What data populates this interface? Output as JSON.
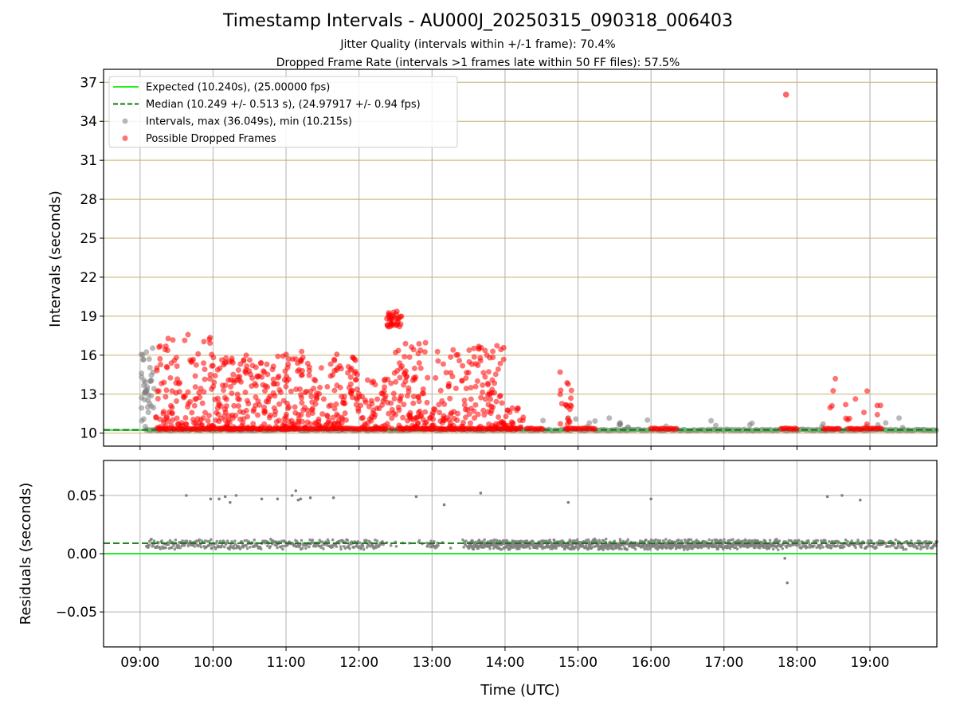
{
  "figure": {
    "title": "Timestamp Intervals - AU000J_20250315_090318_006403",
    "subtitle_jitter": "Jitter Quality (intervals within +/-1 frame): 70.4%",
    "subtitle_dropped": "Dropped Frame Rate (intervals >1 frames late within 50 FF files): 57.5%"
  },
  "colors": {
    "expected": "#22ee22",
    "median": "#117711",
    "intervals": "#808080",
    "dropped": "#ff0000",
    "hgrid_top": "#c8b070",
    "grid": "#b0b0b0"
  },
  "chart_data": [
    {
      "type": "scatter",
      "ylabel": "Intervals (seconds)",
      "ylim": [
        9,
        38
      ],
      "yticks": [
        10,
        13,
        16,
        19,
        22,
        25,
        28,
        31,
        34,
        37
      ],
      "xlim": [
        "08:30",
        "19:55"
      ],
      "xticks": [
        "09:00",
        "10:00",
        "11:00",
        "12:00",
        "13:00",
        "14:00",
        "15:00",
        "16:00",
        "17:00",
        "18:00",
        "19:00"
      ],
      "grid": "on",
      "legend_position": "top-left",
      "legend": [
        "Expected (10.240s), (25.00000 fps)",
        "Median (10.249 +/- 0.513 s), (24.97917 +/- 0.94 fps)",
        "Intervals, max (36.049s), min (10.215s)",
        "Possible Dropped Frames"
      ],
      "expected_interval": 10.24,
      "median_interval": 10.249,
      "interval_max": 36.049,
      "interval_min": 10.215,
      "outlier": {
        "time": "17:51",
        "value": 36.05
      },
      "dropped_clusters": [
        {
          "from": "09:13",
          "to": "10:00",
          "low": 10.3,
          "high": 17.6,
          "count": 120
        },
        {
          "from": "10:00",
          "to": "11:00",
          "low": 10.3,
          "high": 16.0,
          "count": 180
        },
        {
          "from": "11:00",
          "to": "12:00",
          "low": 10.3,
          "high": 16.3,
          "count": 170
        },
        {
          "from": "12:00",
          "to": "12:28",
          "low": 10.3,
          "high": 14.3,
          "count": 55
        },
        {
          "from": "12:22",
          "to": "12:35",
          "low": 18.2,
          "high": 19.4,
          "count": 35
        },
        {
          "from": "12:28",
          "to": "13:00",
          "low": 10.3,
          "high": 17.0,
          "count": 95
        },
        {
          "from": "13:00",
          "to": "14:00",
          "low": 10.3,
          "high": 16.8,
          "count": 150
        },
        {
          "from": "14:00",
          "to": "14:15",
          "low": 10.3,
          "high": 12.0,
          "count": 25
        },
        {
          "from": "14:45",
          "to": "14:55",
          "low": 10.3,
          "high": 14.7,
          "count": 20
        },
        {
          "from": "18:25",
          "to": "19:10",
          "low": 10.3,
          "high": 14.3,
          "count": 15
        }
      ],
      "dropped_baseline_segments": [
        [
          "09:15",
          "12:22"
        ],
        [
          "12:32",
          "14:10"
        ],
        [
          "14:18",
          "14:32"
        ],
        [
          "14:50",
          "15:15"
        ],
        [
          "16:00",
          "16:22"
        ],
        [
          "17:47",
          "18:00"
        ],
        [
          "18:22",
          "18:35"
        ],
        [
          "18:42",
          "19:10"
        ]
      ],
      "interval_clusters": [
        {
          "from": "09:01",
          "to": "09:12",
          "low": 10.3,
          "high": 17.1,
          "count": 40
        },
        {
          "from": "14:30",
          "to": "19:55",
          "low": 10.2,
          "high": 11.2,
          "count": 30
        }
      ]
    },
    {
      "type": "scatter",
      "ylabel": "Residuals (seconds)",
      "xlabel": "Time (UTC)",
      "ylim": [
        -0.08,
        0.08
      ],
      "yticks": [
        0.05,
        0.0,
        -0.05
      ],
      "ytick_labels": [
        "0.05",
        "0.00",
        "−0.05"
      ],
      "expected": 0.0,
      "median": 0.009,
      "residual_band": {
        "from": "09:05",
        "to": "19:55",
        "center": 0.008,
        "spread": 0.004
      },
      "gaps": [
        [
          "12:20",
          "12:55"
        ],
        [
          "13:05",
          "13:25"
        ]
      ],
      "high_points": [
        {
          "time": "09:38",
          "value": 0.05
        },
        {
          "time": "09:58",
          "value": 0.047
        },
        {
          "time": "10:05",
          "value": 0.047
        },
        {
          "time": "10:10",
          "value": 0.049
        },
        {
          "time": "10:14",
          "value": 0.044
        },
        {
          "time": "10:19",
          "value": 0.05
        },
        {
          "time": "10:40",
          "value": 0.047
        },
        {
          "time": "10:53",
          "value": 0.047
        },
        {
          "time": "11:05",
          "value": 0.05
        },
        {
          "time": "11:08",
          "value": 0.054
        },
        {
          "time": "11:10",
          "value": 0.046
        },
        {
          "time": "11:12",
          "value": 0.047
        },
        {
          "time": "11:20",
          "value": 0.048
        },
        {
          "time": "11:39",
          "value": 0.048
        },
        {
          "time": "12:47",
          "value": 0.049
        },
        {
          "time": "13:10",
          "value": 0.042
        },
        {
          "time": "13:40",
          "value": 0.052
        },
        {
          "time": "14:52",
          "value": 0.044
        },
        {
          "time": "16:00",
          "value": 0.047
        },
        {
          "time": "18:25",
          "value": 0.049
        },
        {
          "time": "18:37",
          "value": 0.05
        },
        {
          "time": "18:52",
          "value": 0.046
        }
      ],
      "low_points": [
        {
          "time": "17:50",
          "value": -0.004
        },
        {
          "time": "17:52",
          "value": -0.025
        }
      ]
    }
  ]
}
